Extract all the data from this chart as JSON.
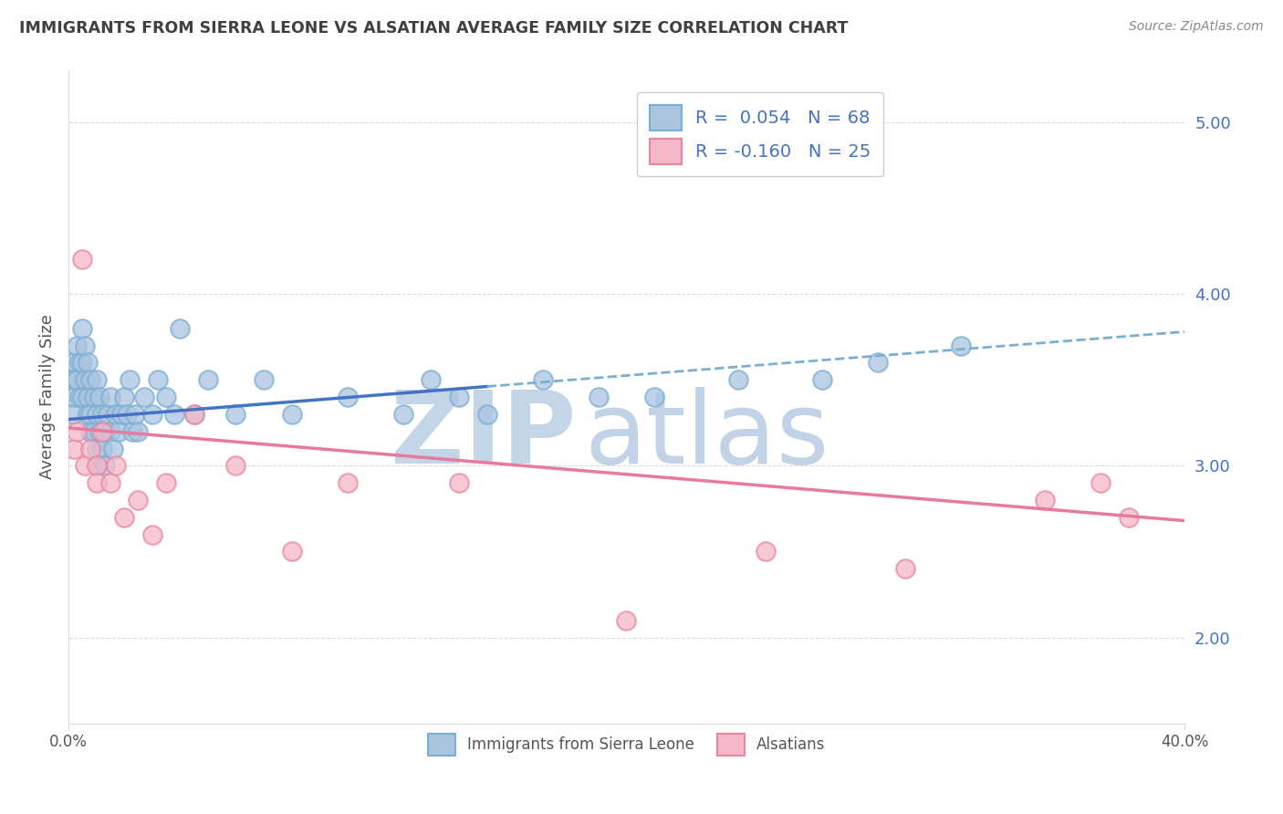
{
  "title": "IMMIGRANTS FROM SIERRA LEONE VS ALSATIAN AVERAGE FAMILY SIZE CORRELATION CHART",
  "source": "Source: ZipAtlas.com",
  "ylabel": "Average Family Size",
  "xlim": [
    0,
    40
  ],
  "ylim": [
    1.5,
    5.3
  ],
  "yticks": [
    2.0,
    3.0,
    4.0,
    5.0
  ],
  "legend_label1": "Immigrants from Sierra Leone",
  "legend_label2": "Alsatians",
  "r1": 0.054,
  "n1": 68,
  "r2": -0.16,
  "n2": 25,
  "blue_color": "#aac4e0",
  "blue_edge": "#7aafd4",
  "blue_line_solid": "#4472c4",
  "blue_line_dashed": "#7aafd4",
  "pink_color": "#f4b8c8",
  "pink_edge": "#e8879f",
  "pink_line": "#e8799f",
  "watermark_zip_color": "#c8d4e4",
  "watermark_atlas_color": "#b8cce0",
  "background_color": "#ffffff",
  "grid_color": "#cccccc",
  "title_color": "#404040",
  "source_color": "#888888",
  "blue_scatter_x": [
    0.1,
    0.15,
    0.2,
    0.2,
    0.25,
    0.3,
    0.3,
    0.4,
    0.4,
    0.5,
    0.5,
    0.5,
    0.6,
    0.6,
    0.7,
    0.7,
    0.7,
    0.8,
    0.8,
    0.8,
    0.9,
    0.9,
    1.0,
    1.0,
    1.0,
    1.0,
    1.1,
    1.1,
    1.2,
    1.2,
    1.3,
    1.3,
    1.4,
    1.5,
    1.5,
    1.6,
    1.7,
    1.8,
    1.9,
    2.0,
    2.1,
    2.2,
    2.3,
    2.4,
    2.5,
    2.7,
    3.0,
    3.2,
    3.5,
    3.8,
    4.0,
    4.5,
    5.0,
    6.0,
    7.0,
    8.0,
    10.0,
    12.0,
    13.0,
    14.0,
    15.0,
    17.0,
    19.0,
    21.0,
    24.0,
    27.0,
    29.0,
    32.0
  ],
  "blue_scatter_y": [
    3.5,
    3.3,
    3.6,
    3.4,
    3.5,
    3.7,
    3.5,
    3.6,
    3.4,
    3.8,
    3.6,
    3.4,
    3.7,
    3.5,
    3.6,
    3.4,
    3.3,
    3.5,
    3.3,
    3.2,
    3.4,
    3.2,
    3.5,
    3.3,
    3.1,
    3.0,
    3.4,
    3.2,
    3.3,
    3.1,
    3.2,
    3.0,
    3.3,
    3.4,
    3.2,
    3.1,
    3.3,
    3.2,
    3.3,
    3.4,
    3.3,
    3.5,
    3.2,
    3.3,
    3.2,
    3.4,
    3.3,
    3.5,
    3.4,
    3.3,
    3.8,
    3.3,
    3.5,
    3.3,
    3.5,
    3.3,
    3.4,
    3.3,
    3.5,
    3.4,
    3.3,
    3.5,
    3.4,
    3.4,
    3.5,
    3.5,
    3.6,
    3.7
  ],
  "blue_solid_end_x": 15.0,
  "pink_scatter_x": [
    0.2,
    0.3,
    0.5,
    0.6,
    0.8,
    1.0,
    1.0,
    1.2,
    1.5,
    1.7,
    2.0,
    2.5,
    3.0,
    3.5,
    4.5,
    6.0,
    8.0,
    10.0,
    14.0,
    20.0,
    25.0,
    30.0,
    35.0,
    37.0,
    38.0
  ],
  "pink_scatter_y": [
    3.1,
    3.2,
    4.2,
    3.0,
    3.1,
    3.0,
    2.9,
    3.2,
    2.9,
    3.0,
    2.7,
    2.8,
    2.6,
    2.9,
    3.3,
    3.0,
    2.5,
    2.9,
    2.9,
    2.1,
    2.5,
    2.4,
    2.8,
    2.9,
    2.7
  ],
  "blue_trend_x0": 0,
  "blue_trend_x1": 40,
  "blue_trend_y0": 3.27,
  "blue_trend_y1": 3.78,
  "pink_trend_x0": 0,
  "pink_trend_x1": 40,
  "pink_trend_y0": 3.22,
  "pink_trend_y1": 2.68
}
